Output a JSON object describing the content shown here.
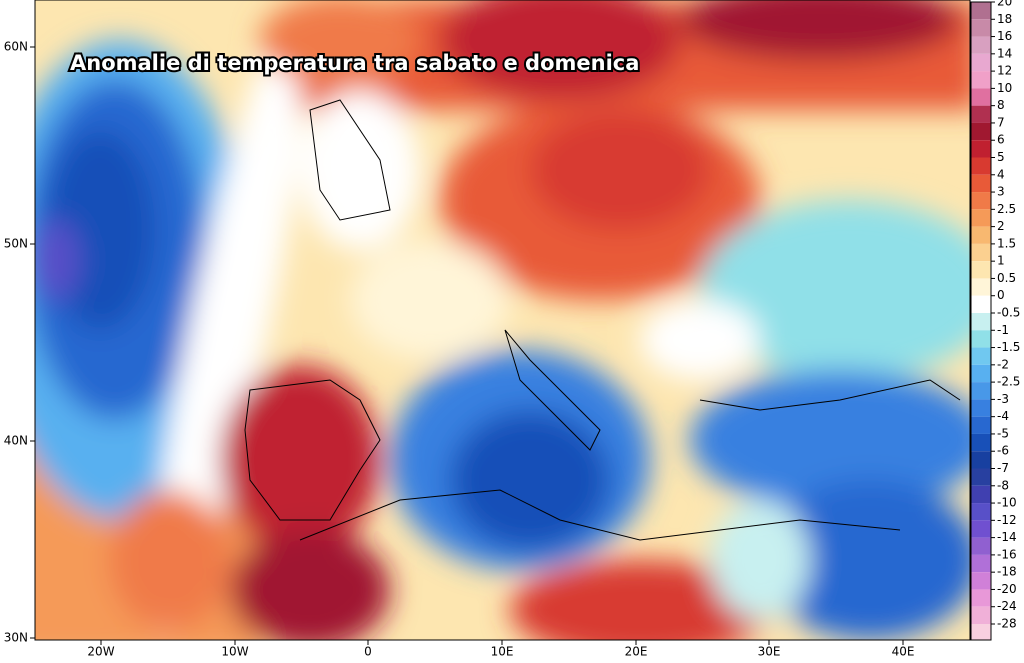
{
  "title": "Anomalie di temperatura tra sabato e domenica",
  "latitude_labels": [
    "60N",
    "50N",
    "40N",
    "30N"
  ],
  "longitude_labels": [
    "20W",
    "10W",
    "0",
    "10E",
    "20E",
    "30E",
    "40E"
  ],
  "legend": [
    {
      "label": "20",
      "color": "#b07090"
    },
    {
      "label": "18",
      "color": "#c88aa8"
    },
    {
      "label": "16",
      "color": "#d8a0c0"
    },
    {
      "label": "14",
      "color": "#e8a8d0"
    },
    {
      "label": "12",
      "color": "#f0a0c8"
    },
    {
      "label": "10",
      "color": "#e070a0"
    },
    {
      "label": "8",
      "color": "#b03050"
    },
    {
      "label": "7",
      "color": "#a01830"
    },
    {
      "label": "6",
      "color": "#c02030"
    },
    {
      "label": "5",
      "color": "#d83a30"
    },
    {
      "label": "4",
      "color": "#e85a38"
    },
    {
      "label": "3",
      "color": "#f07a48"
    },
    {
      "label": "2.5",
      "color": "#f59a58"
    },
    {
      "label": "2",
      "color": "#f8b870"
    },
    {
      "label": "1.5",
      "color": "#fbd090"
    },
    {
      "label": "1",
      "color": "#fde6b0"
    },
    {
      "label": "0.5",
      "color": "#fff5d8"
    },
    {
      "label": "0",
      "color": "#ffffff"
    },
    {
      "label": "-0.5",
      "color": "#c8f0f0"
    },
    {
      "label": "-1",
      "color": "#90e0e8"
    },
    {
      "label": "-1.5",
      "color": "#70c8f0"
    },
    {
      "label": "-2",
      "color": "#58b0f0"
    },
    {
      "label": "-2.5",
      "color": "#4898e8"
    },
    {
      "label": "-3",
      "color": "#3880e0"
    },
    {
      "label": "-4",
      "color": "#2868d0"
    },
    {
      "label": "-5",
      "color": "#1850b8"
    },
    {
      "label": "-6",
      "color": "#1840a0"
    },
    {
      "label": "-7",
      "color": "#2840a0"
    },
    {
      "label": "-8",
      "color": "#4040b0"
    },
    {
      "label": "-10",
      "color": "#5850c8"
    },
    {
      "label": "-12",
      "color": "#7050d0"
    },
    {
      "label": "-14",
      "color": "#9060d0"
    },
    {
      "label": "-16",
      "color": "#b070d8"
    },
    {
      "label": "-18",
      "color": "#d080d8"
    },
    {
      "label": "-20",
      "color": "#e898d8"
    },
    {
      "label": "-24",
      "color": "#f0b0d8"
    },
    {
      "label": "-28",
      "color": "#f8d0e0"
    }
  ]
}
